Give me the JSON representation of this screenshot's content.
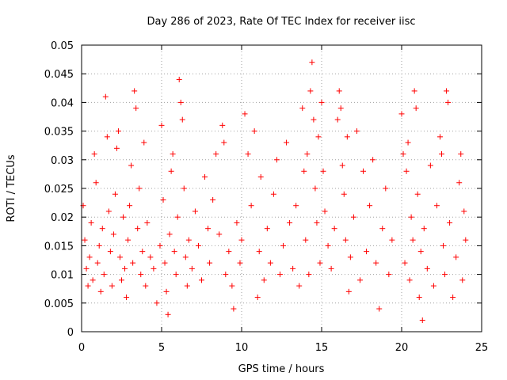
{
  "chart_data": {
    "type": "scatter",
    "title": "Day 286 of 2023, Rate Of TEC Index for receiver iisc",
    "xlabel": "GPS time / hours",
    "ylabel": "ROTI / TECUs",
    "xlim": [
      0,
      25
    ],
    "ylim": [
      0,
      0.05
    ],
    "x_ticks": [
      0,
      5,
      10,
      15,
      20,
      25
    ],
    "x_tick_labels": [
      "0",
      "5",
      "10",
      "15",
      "20",
      "25"
    ],
    "y_ticks": [
      0,
      0.005,
      0.01,
      0.015,
      0.02,
      0.025,
      0.03,
      0.035,
      0.04,
      0.045,
      0.05
    ],
    "y_tick_labels": [
      "0",
      "0.005",
      "0.01",
      "0.015",
      "0.02",
      "0.025",
      "0.03",
      "0.035",
      "0.04",
      "0.045",
      "0.05"
    ],
    "grid": true,
    "marker": "+",
    "marker_color": "#ff0000",
    "series": [
      {
        "name": "ROTI",
        "points": [
          [
            0.1,
            0.022
          ],
          [
            0.2,
            0.016
          ],
          [
            0.3,
            0.011
          ],
          [
            0.4,
            0.008
          ],
          [
            0.5,
            0.013
          ],
          [
            0.6,
            0.019
          ],
          [
            0.7,
            0.009
          ],
          [
            0.8,
            0.031
          ],
          [
            0.9,
            0.026
          ],
          [
            1.0,
            0.012
          ],
          [
            1.1,
            0.015
          ],
          [
            1.2,
            0.007
          ],
          [
            1.3,
            0.018
          ],
          [
            1.4,
            0.01
          ],
          [
            1.5,
            0.041
          ],
          [
            1.6,
            0.034
          ],
          [
            1.7,
            0.021
          ],
          [
            1.8,
            0.014
          ],
          [
            1.9,
            0.008
          ],
          [
            2.0,
            0.017
          ],
          [
            2.1,
            0.024
          ],
          [
            2.2,
            0.032
          ],
          [
            2.3,
            0.035
          ],
          [
            2.4,
            0.013
          ],
          [
            2.5,
            0.009
          ],
          [
            2.6,
            0.02
          ],
          [
            2.7,
            0.011
          ],
          [
            2.8,
            0.006
          ],
          [
            2.9,
            0.016
          ],
          [
            3.0,
            0.022
          ],
          [
            3.1,
            0.029
          ],
          [
            3.2,
            0.012
          ],
          [
            3.3,
            0.042
          ],
          [
            3.4,
            0.039
          ],
          [
            3.5,
            0.018
          ],
          [
            3.6,
            0.025
          ],
          [
            3.7,
            0.01
          ],
          [
            3.8,
            0.014
          ],
          [
            3.9,
            0.033
          ],
          [
            4.0,
            0.008
          ],
          [
            4.1,
            0.019
          ],
          [
            4.3,
            0.013
          ],
          [
            4.5,
            0.011
          ],
          [
            4.7,
            0.005
          ],
          [
            4.9,
            0.015
          ],
          [
            5.0,
            0.036
          ],
          [
            5.1,
            0.023
          ],
          [
            5.2,
            0.012
          ],
          [
            5.3,
            0.007
          ],
          [
            5.4,
            0.003
          ],
          [
            5.5,
            0.017
          ],
          [
            5.6,
            0.028
          ],
          [
            5.7,
            0.031
          ],
          [
            5.8,
            0.014
          ],
          [
            5.9,
            0.01
          ],
          [
            6.0,
            0.02
          ],
          [
            6.1,
            0.044
          ],
          [
            6.2,
            0.04
          ],
          [
            6.3,
            0.037
          ],
          [
            6.4,
            0.025
          ],
          [
            6.5,
            0.013
          ],
          [
            6.6,
            0.008
          ],
          [
            6.7,
            0.016
          ],
          [
            6.9,
            0.011
          ],
          [
            7.1,
            0.021
          ],
          [
            7.3,
            0.015
          ],
          [
            7.5,
            0.009
          ],
          [
            7.7,
            0.027
          ],
          [
            7.9,
            0.018
          ],
          [
            8.0,
            0.012
          ],
          [
            8.2,
            0.023
          ],
          [
            8.4,
            0.031
          ],
          [
            8.6,
            0.017
          ],
          [
            8.8,
            0.036
          ],
          [
            8.9,
            0.033
          ],
          [
            9.0,
            0.01
          ],
          [
            9.2,
            0.014
          ],
          [
            9.4,
            0.008
          ],
          [
            9.5,
            0.004
          ],
          [
            9.7,
            0.019
          ],
          [
            9.9,
            0.012
          ],
          [
            10.0,
            0.016
          ],
          [
            10.2,
            0.038
          ],
          [
            10.4,
            0.031
          ],
          [
            10.6,
            0.022
          ],
          [
            10.8,
            0.035
          ],
          [
            11.0,
            0.006
          ],
          [
            11.1,
            0.014
          ],
          [
            11.2,
            0.027
          ],
          [
            11.4,
            0.009
          ],
          [
            11.6,
            0.018
          ],
          [
            11.8,
            0.012
          ],
          [
            12.0,
            0.024
          ],
          [
            12.2,
            0.03
          ],
          [
            12.4,
            0.01
          ],
          [
            12.6,
            0.015
          ],
          [
            12.8,
            0.033
          ],
          [
            13.0,
            0.019
          ],
          [
            13.2,
            0.011
          ],
          [
            13.4,
            0.022
          ],
          [
            13.6,
            0.008
          ],
          [
            13.8,
            0.039
          ],
          [
            13.9,
            0.028
          ],
          [
            14.0,
            0.016
          ],
          [
            14.1,
            0.031
          ],
          [
            14.2,
            0.01
          ],
          [
            14.3,
            0.042
          ],
          [
            14.4,
            0.047
          ],
          [
            14.5,
            0.037
          ],
          [
            14.6,
            0.025
          ],
          [
            14.7,
            0.019
          ],
          [
            14.8,
            0.034
          ],
          [
            14.9,
            0.012
          ],
          [
            15.0,
            0.04
          ],
          [
            15.1,
            0.028
          ],
          [
            15.2,
            0.021
          ],
          [
            15.4,
            0.015
          ],
          [
            15.6,
            0.011
          ],
          [
            15.8,
            0.018
          ],
          [
            16.0,
            0.037
          ],
          [
            16.1,
            0.042
          ],
          [
            16.2,
            0.039
          ],
          [
            16.3,
            0.029
          ],
          [
            16.4,
            0.024
          ],
          [
            16.5,
            0.016
          ],
          [
            16.6,
            0.034
          ],
          [
            16.7,
            0.007
          ],
          [
            16.8,
            0.013
          ],
          [
            17.0,
            0.02
          ],
          [
            17.2,
            0.035
          ],
          [
            17.4,
            0.009
          ],
          [
            17.6,
            0.028
          ],
          [
            17.8,
            0.014
          ],
          [
            18.0,
            0.022
          ],
          [
            18.2,
            0.03
          ],
          [
            18.4,
            0.012
          ],
          [
            18.6,
            0.004
          ],
          [
            18.8,
            0.018
          ],
          [
            19.0,
            0.025
          ],
          [
            19.2,
            0.01
          ],
          [
            19.4,
            0.016
          ],
          [
            20.0,
            0.038
          ],
          [
            20.1,
            0.031
          ],
          [
            20.2,
            0.012
          ],
          [
            20.3,
            0.028
          ],
          [
            20.4,
            0.033
          ],
          [
            20.5,
            0.009
          ],
          [
            20.6,
            0.02
          ],
          [
            20.7,
            0.016
          ],
          [
            20.8,
            0.042
          ],
          [
            20.9,
            0.039
          ],
          [
            21.0,
            0.024
          ],
          [
            21.1,
            0.006
          ],
          [
            21.2,
            0.014
          ],
          [
            21.3,
            0.002
          ],
          [
            21.4,
            0.018
          ],
          [
            21.6,
            0.011
          ],
          [
            21.8,
            0.029
          ],
          [
            22.0,
            0.008
          ],
          [
            22.2,
            0.022
          ],
          [
            22.4,
            0.034
          ],
          [
            22.5,
            0.031
          ],
          [
            22.6,
            0.015
          ],
          [
            22.7,
            0.01
          ],
          [
            22.8,
            0.042
          ],
          [
            22.9,
            0.04
          ],
          [
            23.0,
            0.019
          ],
          [
            23.2,
            0.006
          ],
          [
            23.4,
            0.013
          ],
          [
            23.6,
            0.026
          ],
          [
            23.7,
            0.031
          ],
          [
            23.8,
            0.009
          ],
          [
            23.9,
            0.021
          ],
          [
            24.0,
            0.016
          ]
        ]
      }
    ]
  }
}
